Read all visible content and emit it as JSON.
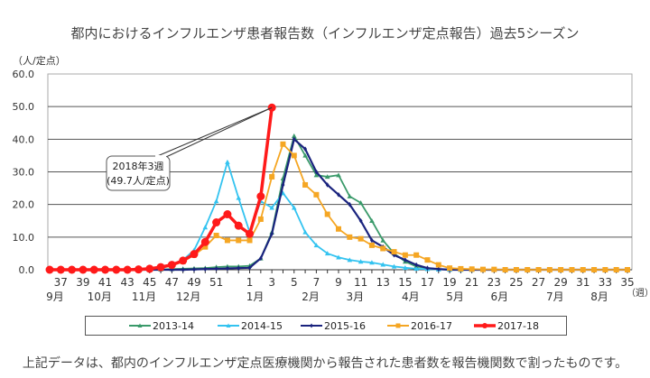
{
  "footnote": "上記データは、都内のインフルエンザ定点医療機関から報告された患者数を報告機関数で割ったものです。",
  "chart_data": {
    "type": "line",
    "title": "都内におけるインフルエンザ患者報告数（インフルエンザ定点報告）過去5シーズン",
    "ylabel": "（人/定点）",
    "xlabel": "（週）",
    "ylim": [
      0,
      60
    ],
    "yticks": [
      "0.0",
      "10.0",
      "20.0",
      "30.0",
      "40.0",
      "50.0",
      "60.0"
    ],
    "grid": true,
    "legend_position": "bottom",
    "weeks": [
      36,
      37,
      38,
      39,
      40,
      41,
      42,
      43,
      44,
      45,
      46,
      47,
      48,
      49,
      50,
      51,
      52,
      53,
      1,
      2,
      3,
      4,
      5,
      6,
      7,
      8,
      9,
      10,
      11,
      12,
      13,
      14,
      15,
      16,
      17,
      18,
      19,
      20,
      21,
      22,
      23,
      24,
      25,
      26,
      27,
      28,
      29,
      30,
      31,
      32,
      33,
      34,
      35
    ],
    "week_tick_labels": [
      "37",
      "39",
      "41",
      "43",
      "45",
      "47",
      "49",
      "51",
      "1",
      "3",
      "5",
      "7",
      "9",
      "11",
      "13",
      "15",
      "17",
      "19",
      "21",
      "23",
      "25",
      "27",
      "29",
      "31",
      "33",
      "35"
    ],
    "month_labels": [
      {
        "label": "9月",
        "week": 36
      },
      {
        "label": "10月",
        "week": 40
      },
      {
        "label": "11月",
        "week": 44
      },
      {
        "label": "12月",
        "week": 48
      },
      {
        "label": "1月",
        "week": 1
      },
      {
        "label": "2月",
        "week": 6
      },
      {
        "label": "3月",
        "week": 10
      },
      {
        "label": "4月",
        "week": 15
      },
      {
        "label": "5月",
        "week": 19
      },
      {
        "label": "6月",
        "week": 23
      },
      {
        "label": "7月",
        "week": 28
      },
      {
        "label": "8月",
        "week": 32
      }
    ],
    "annotation": {
      "line1": "2018年3週",
      "line2": "(49.7人/定点)",
      "week": 3,
      "value": 49.7
    },
    "series": [
      {
        "name": "2013-14",
        "color": "#3a9a6a",
        "marker": "triangle",
        "values": [
          0,
          0,
          0,
          0,
          0,
          0,
          0,
          0,
          0,
          0,
          0.1,
          0.2,
          0.3,
          0.4,
          0.5,
          0.8,
          1.0,
          1.0,
          1.2,
          3.5,
          11.5,
          28,
          41,
          35,
          29,
          28.5,
          29,
          22.5,
          20.5,
          15,
          9,
          5,
          2.5,
          1,
          0.5,
          0.2,
          0.1,
          0,
          0,
          0,
          0,
          0,
          0,
          0,
          0,
          0,
          0,
          0,
          0,
          0,
          0,
          0,
          0
        ]
      },
      {
        "name": "2014-15",
        "color": "#33c3f0",
        "marker": "triangle",
        "values": [
          0,
          0,
          0,
          0,
          0,
          0,
          0,
          0.1,
          0.2,
          0.4,
          0.8,
          1.6,
          3,
          6,
          13,
          21,
          33,
          22,
          11.5,
          21,
          19,
          23.5,
          19,
          11.5,
          7.5,
          5,
          3.8,
          3,
          2.5,
          2.2,
          1.6,
          1,
          0.6,
          0.3,
          0.2,
          0.1,
          0,
          0,
          0,
          0,
          0,
          0,
          0,
          0,
          0,
          0,
          0,
          0,
          0,
          0,
          0,
          0,
          0
        ]
      },
      {
        "name": "2015-16",
        "color": "#1a237e",
        "marker": "diamond",
        "values": [
          0,
          0,
          0,
          0,
          0,
          0,
          0,
          0,
          0,
          0,
          0,
          0,
          0,
          0.1,
          0.2,
          0.3,
          0.4,
          0.5,
          0.6,
          3.5,
          11,
          26,
          40,
          37,
          30,
          26,
          23,
          20,
          15,
          9,
          7,
          4.5,
          3,
          1.5,
          0.5,
          0.2,
          0,
          0,
          0,
          0,
          0,
          0,
          0,
          0,
          0,
          0,
          0,
          0,
          0,
          0,
          0,
          0,
          0
        ]
      },
      {
        "name": "2016-17",
        "color": "#f5a623",
        "marker": "square",
        "values": [
          0,
          0,
          0,
          0,
          0,
          0,
          0,
          0,
          0.1,
          0.3,
          0.6,
          1.2,
          2.5,
          4.5,
          7,
          10.5,
          9,
          9,
          9,
          15.5,
          28.5,
          38.5,
          35,
          26,
          23,
          17,
          12.5,
          10,
          9.5,
          7.5,
          6.5,
          5.5,
          4.5,
          4.5,
          3,
          1.5,
          0.5,
          0.3,
          0.2,
          0.1,
          0.1,
          0,
          0,
          0,
          0,
          0,
          0,
          0,
          0,
          0,
          0,
          0,
          0
        ]
      },
      {
        "name": "2017-18",
        "color": "#ff1a1a",
        "marker": "circle",
        "values": [
          0,
          0,
          0,
          0,
          0,
          0,
          0,
          0,
          0.1,
          0.3,
          0.8,
          1.5,
          2.8,
          4.8,
          8.5,
          14.5,
          17,
          13.5,
          11,
          22.5,
          49.7,
          null,
          null,
          null,
          null,
          null,
          null,
          null,
          null,
          null,
          null,
          null,
          null,
          null,
          null,
          null,
          null,
          null,
          null,
          null,
          null,
          null,
          null,
          null,
          null,
          null,
          null,
          null,
          null,
          null,
          null,
          null,
          null
        ]
      }
    ]
  }
}
